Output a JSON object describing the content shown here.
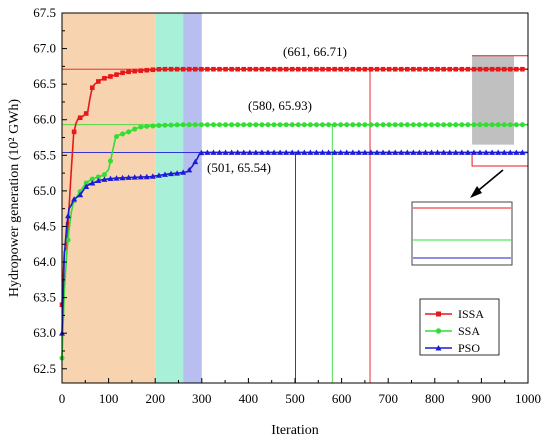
{
  "chart_data": {
    "type": "line",
    "title": "",
    "xlabel": "Iteration",
    "ylabel": "Hydropower generation (10² GWh)",
    "xlim": [
      0,
      1000
    ],
    "ylim": [
      62.3,
      67.5
    ],
    "xticks": [
      0,
      100,
      200,
      300,
      400,
      500,
      600,
      700,
      800,
      900,
      1000
    ],
    "yticks": [
      62.5,
      63.0,
      63.5,
      64.0,
      64.5,
      65.0,
      65.5,
      66.0,
      66.5,
      67.0,
      67.5
    ],
    "ytick_labels": [
      "62.5",
      "63.0",
      "63.5",
      "64.0",
      "64.5",
      "65.0",
      "65.5",
      "66.0",
      "66.5",
      "67.0",
      "67.5"
    ],
    "grid": false,
    "legend_position": "lower-right",
    "shaded_regions": [
      {
        "x0": 0,
        "x1": 200,
        "color": "#f7d3b0"
      },
      {
        "x0": 200,
        "x1": 260,
        "color": "#a9f0d9"
      },
      {
        "x0": 260,
        "x1": 300,
        "color": "#b8bff0"
      }
    ],
    "series": [
      {
        "name": "ISSA",
        "color": "#e8171a",
        "marker": "square",
        "points": [
          [
            0,
            63.4
          ],
          [
            5,
            64.15
          ],
          [
            10,
            64.2
          ],
          [
            15,
            64.75
          ],
          [
            20,
            65.3
          ],
          [
            25,
            65.8
          ],
          [
            30,
            65.95
          ],
          [
            35,
            66.02
          ],
          [
            40,
            66.03
          ],
          [
            45,
            66.05
          ],
          [
            50,
            66.08
          ],
          [
            55,
            66.1
          ],
          [
            60,
            66.3
          ],
          [
            65,
            66.45
          ],
          [
            70,
            66.5
          ],
          [
            75,
            66.52
          ],
          [
            80,
            66.55
          ],
          [
            90,
            66.58
          ],
          [
            100,
            66.6
          ],
          [
            110,
            66.62
          ],
          [
            120,
            66.64
          ],
          [
            130,
            66.66
          ],
          [
            150,
            66.68
          ],
          [
            170,
            66.69
          ],
          [
            190,
            66.7
          ],
          [
            210,
            66.71
          ],
          [
            661,
            66.71
          ],
          [
            1000,
            66.71
          ]
        ],
        "annotation": {
          "x": 661,
          "y": 66.71,
          "label": "(661, 66.71)"
        }
      },
      {
        "name": "SSA",
        "color": "#33dd33",
        "marker": "circle",
        "points": [
          [
            0,
            62.65
          ],
          [
            5,
            63.6
          ],
          [
            10,
            64.1
          ],
          [
            15,
            64.45
          ],
          [
            20,
            64.7
          ],
          [
            25,
            64.85
          ],
          [
            30,
            64.9
          ],
          [
            35,
            64.95
          ],
          [
            40,
            65.0
          ],
          [
            45,
            65.05
          ],
          [
            50,
            65.1
          ],
          [
            60,
            65.15
          ],
          [
            70,
            65.18
          ],
          [
            80,
            65.2
          ],
          [
            90,
            65.22
          ],
          [
            100,
            65.3
          ],
          [
            110,
            65.6
          ],
          [
            115,
            65.75
          ],
          [
            120,
            65.78
          ],
          [
            130,
            65.8
          ],
          [
            140,
            65.82
          ],
          [
            150,
            65.85
          ],
          [
            160,
            65.88
          ],
          [
            170,
            65.9
          ],
          [
            190,
            65.91
          ],
          [
            210,
            65.92
          ],
          [
            260,
            65.93
          ],
          [
            580,
            65.93
          ],
          [
            1000,
            65.93
          ]
        ],
        "annotation": {
          "x": 580,
          "y": 65.93,
          "label": "(580, 65.93)"
        }
      },
      {
        "name": "PSO",
        "color": "#1c1cd6",
        "marker": "triangle",
        "points": [
          [
            0,
            63.0
          ],
          [
            5,
            64.1
          ],
          [
            10,
            64.5
          ],
          [
            15,
            64.75
          ],
          [
            20,
            64.8
          ],
          [
            25,
            64.88
          ],
          [
            30,
            64.9
          ],
          [
            40,
            64.95
          ],
          [
            50,
            65.05
          ],
          [
            60,
            65.1
          ],
          [
            70,
            65.12
          ],
          [
            80,
            65.15
          ],
          [
            100,
            65.17
          ],
          [
            120,
            65.18
          ],
          [
            150,
            65.19
          ],
          [
            190,
            65.2
          ],
          [
            210,
            65.22
          ],
          [
            230,
            65.24
          ],
          [
            250,
            65.25
          ],
          [
            270,
            65.27
          ],
          [
            280,
            65.35
          ],
          [
            290,
            65.45
          ],
          [
            295,
            65.52
          ],
          [
            300,
            65.54
          ],
          [
            501,
            65.54
          ],
          [
            1000,
            65.54
          ]
        ],
        "annotation": {
          "x": 501,
          "y": 65.54,
          "label": "(501, 65.54)"
        }
      }
    ],
    "inset": {
      "x0": 880,
      "x1": 970,
      "y_top": 66.9,
      "y_bottom": 65.65,
      "fill": "#c0c0c0"
    }
  }
}
